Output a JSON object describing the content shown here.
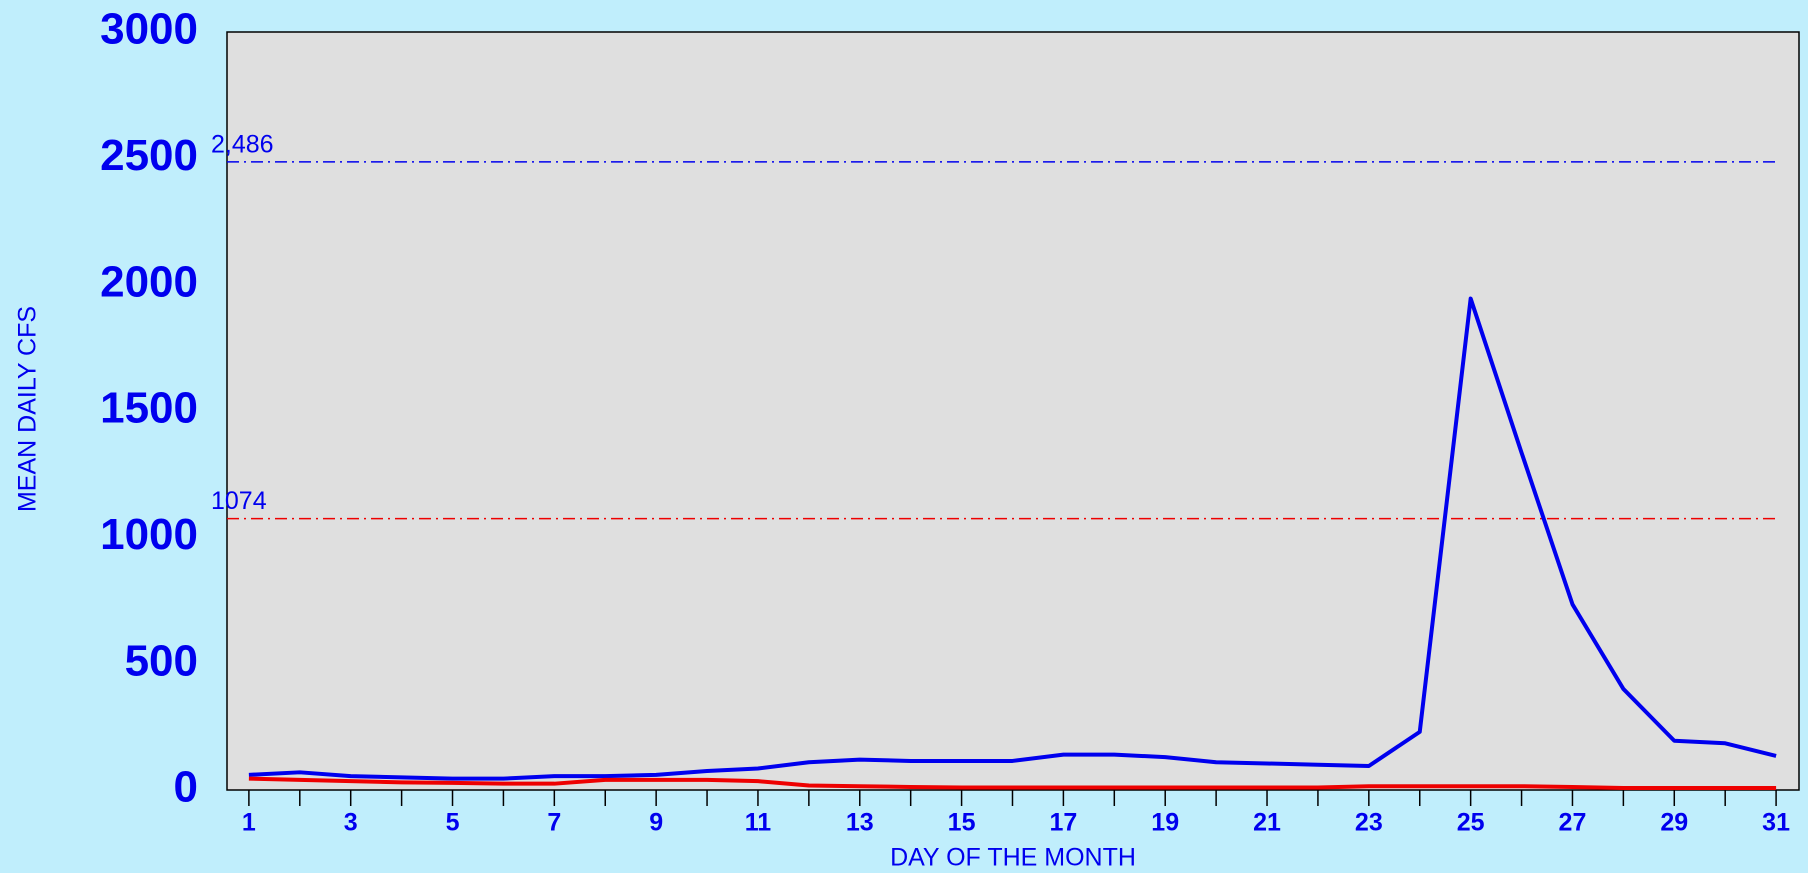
{
  "chart_data": {
    "type": "line",
    "y_label": "MEAN DAILY CFS",
    "x_label": "DAY OF THE MONTH",
    "x": [
      1,
      2,
      3,
      4,
      5,
      6,
      7,
      8,
      9,
      10,
      11,
      12,
      13,
      14,
      15,
      16,
      17,
      18,
      19,
      20,
      21,
      22,
      23,
      24,
      25,
      26,
      27,
      28,
      29,
      30,
      31
    ],
    "series": [
      {
        "color": "#0000ee",
        "values": [
          60,
          70,
          55,
          50,
          45,
          45,
          55,
          55,
          60,
          75,
          85,
          110,
          120,
          115,
          115,
          115,
          140,
          140,
          130,
          110,
          105,
          100,
          95,
          230,
          1945,
          1335,
          735,
          400,
          195,
          185,
          135
        ]
      },
      {
        "color": "#ee0000",
        "values": [
          45,
          40,
          35,
          30,
          28,
          25,
          25,
          40,
          40,
          40,
          35,
          18,
          15,
          12,
          10,
          10,
          10,
          10,
          10,
          10,
          10,
          10,
          15,
          15,
          15,
          15,
          12,
          8,
          8,
          8,
          8
        ]
      }
    ],
    "reference_lines": [
      {
        "value": 2486,
        "label": "2,486",
        "color": "#0000ee"
      },
      {
        "value": 1074,
        "label": "1074",
        "color": "#ee0000"
      }
    ],
    "xlim": [
      0.57,
      31.45
    ],
    "xticks": [
      1,
      3,
      5,
      7,
      9,
      11,
      13,
      15,
      17,
      19,
      21,
      23,
      25,
      27,
      29,
      31
    ],
    "xminorticks": [
      2,
      4,
      6,
      8,
      10,
      12,
      14,
      16,
      18,
      20,
      22,
      24,
      26,
      28,
      30
    ],
    "ylim": [
      0,
      3000
    ],
    "yticks": [
      0,
      500,
      1000,
      1500,
      2000,
      2500,
      3000
    ]
  }
}
